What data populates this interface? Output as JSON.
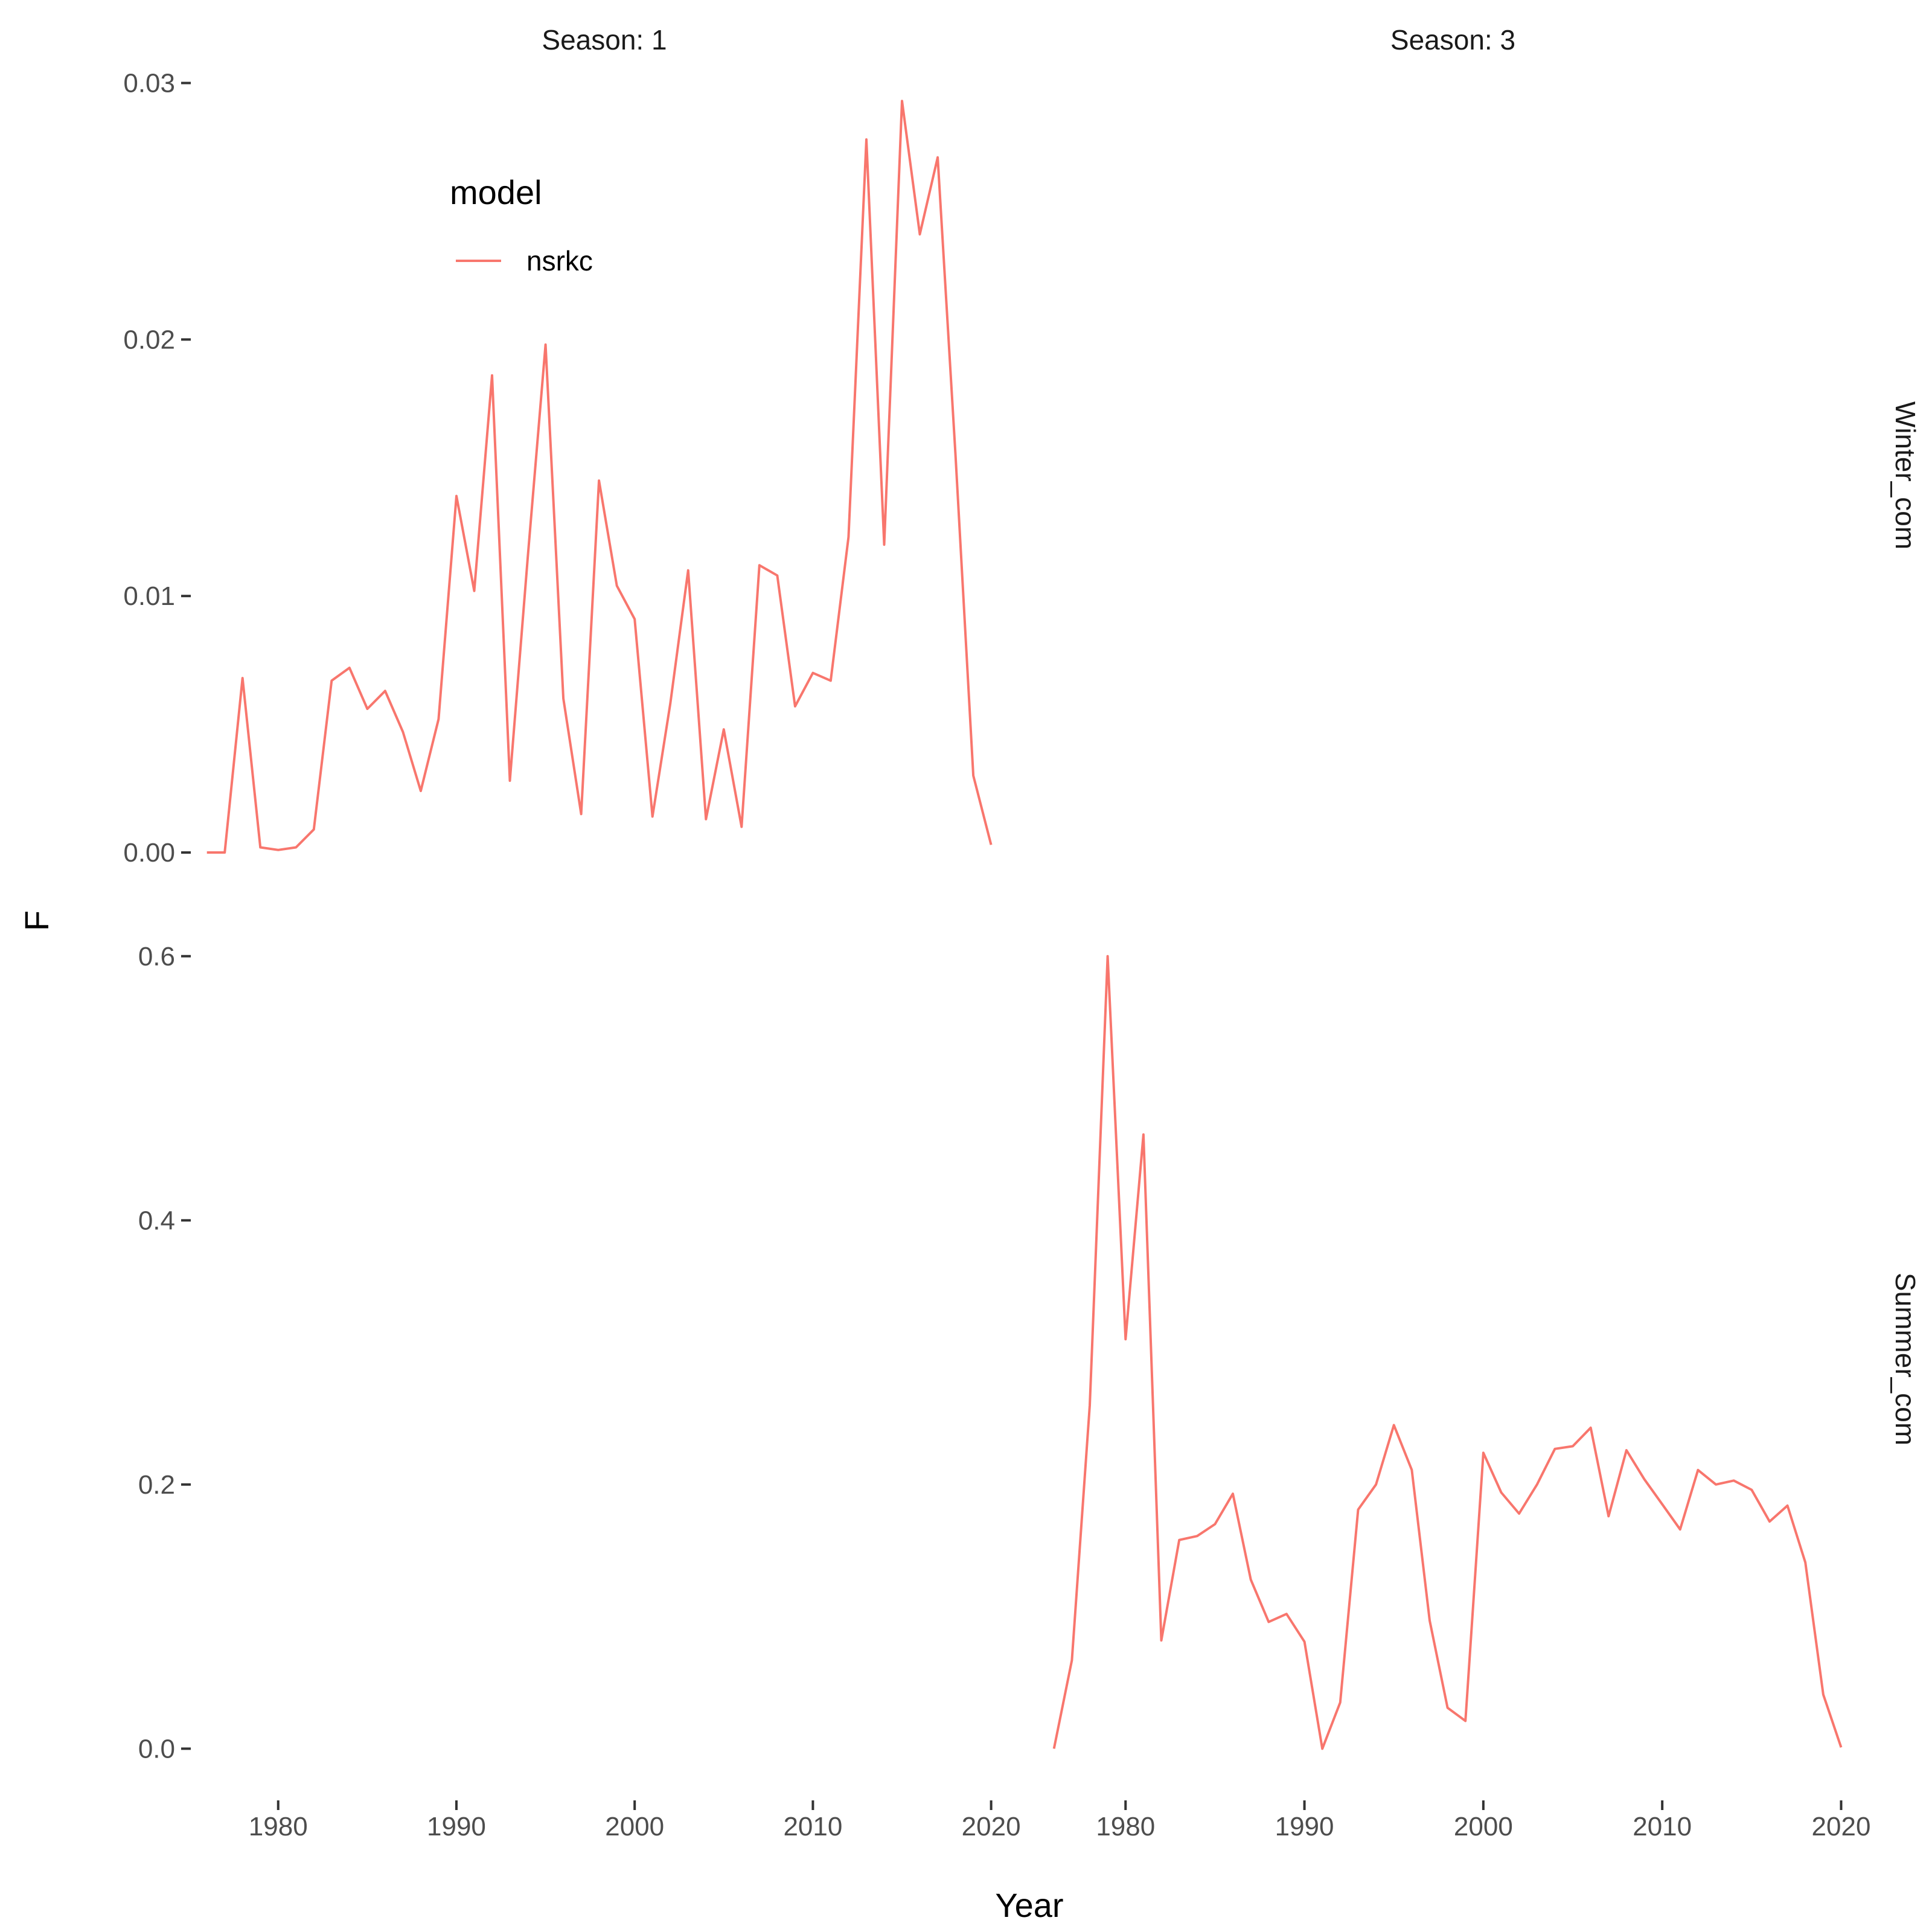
{
  "chart_data": {
    "type": "line",
    "xlabel": "Year",
    "ylabel": "F",
    "series_color": "#F8766D",
    "legend": {
      "title": "model",
      "entries": [
        "nsrkc"
      ],
      "placement": "inside-top-left"
    },
    "grid": false,
    "column_strips": [
      "Season: 1",
      "Season: 3"
    ],
    "row_strips": [
      "Winter_com",
      "Summer_com"
    ],
    "x_ticks": [
      1980,
      1990,
      2000,
      2010,
      2020
    ],
    "x_tick_labels": [
      "1980",
      "1990",
      "2000",
      "2010",
      "2020"
    ],
    "xlim": [
      1975.3,
      2021.3
    ],
    "rows": [
      {
        "ylim": [
          -0.0016,
          0.031
        ],
        "y_ticks": [
          0.0,
          0.01,
          0.02,
          0.03
        ],
        "y_tick_labels": [
          "0.00",
          "0.01",
          "0.02",
          "0.03"
        ]
      },
      {
        "ylim": [
          -0.03,
          0.62
        ],
        "y_ticks": [
          0.0,
          0.2,
          0.4,
          0.6
        ],
        "y_tick_labels": [
          "0.0",
          "0.2",
          "0.4",
          "0.6"
        ]
      }
    ],
    "panels": [
      {
        "row": 0,
        "col": 0,
        "series": "nsrkc",
        "x": [
          1976,
          1977,
          1978,
          1979,
          1980,
          1981,
          1982,
          1983,
          1984,
          1985,
          1986,
          1987,
          1988,
          1989,
          1990,
          1991,
          1992,
          1993,
          1994,
          1995,
          1996,
          1997,
          1998,
          1999,
          2000,
          2001,
          2002,
          2003,
          2004,
          2005,
          2006,
          2007,
          2008,
          2009,
          2010,
          2011,
          2012,
          2013,
          2014,
          2015,
          2016,
          2017,
          2018,
          2019,
          2020
        ],
        "y": [
          0.0,
          0.0,
          0.0068,
          0.0002,
          0.0001,
          0.0002,
          0.0009,
          0.0067,
          0.0072,
          0.0056,
          0.0063,
          0.0047,
          0.0024,
          0.0052,
          0.0139,
          0.0102,
          0.0186,
          0.0028,
          0.0115,
          0.0198,
          0.006,
          0.0015,
          0.0145,
          0.0104,
          0.0091,
          0.0014,
          0.0058,
          0.011,
          0.0013,
          0.0048,
          0.001,
          0.0112,
          0.0108,
          0.0057,
          0.007,
          0.0067,
          0.0123,
          0.0278,
          0.012,
          0.0293,
          0.0241,
          0.0271,
          0.0155,
          0.003,
          0.0003
        ]
      },
      {
        "row": 0,
        "col": 1,
        "series": "nsrkc",
        "x": [],
        "y": []
      },
      {
        "row": 1,
        "col": 0,
        "series": "nsrkc",
        "x": [],
        "y": []
      },
      {
        "row": 1,
        "col": 1,
        "series": "nsrkc",
        "x": [
          1976,
          1977,
          1978,
          1979,
          1980,
          1981,
          1982,
          1983,
          1984,
          1985,
          1986,
          1987,
          1988,
          1989,
          1990,
          1991,
          1992,
          1993,
          1994,
          1995,
          1996,
          1997,
          1998,
          1999,
          2000,
          2001,
          2002,
          2003,
          2004,
          2005,
          2006,
          2007,
          2008,
          2009,
          2010,
          2011,
          2012,
          2013,
          2014,
          2015,
          2016,
          2017,
          2018,
          2019,
          2020
        ],
        "y": [
          0.0,
          0.067,
          0.26,
          0.6,
          0.31,
          0.465,
          0.082,
          0.158,
          0.161,
          0.17,
          0.193,
          0.128,
          0.096,
          0.102,
          0.081,
          0.0,
          0.035,
          0.181,
          0.2,
          0.245,
          0.211,
          0.097,
          0.031,
          0.021,
          0.224,
          0.194,
          0.178,
          0.2,
          0.227,
          0.229,
          0.243,
          0.176,
          0.226,
          0.204,
          0.185,
          0.166,
          0.211,
          0.2,
          0.203,
          0.196,
          0.172,
          0.184,
          0.141,
          0.041,
          0.001
        ]
      }
    ]
  }
}
